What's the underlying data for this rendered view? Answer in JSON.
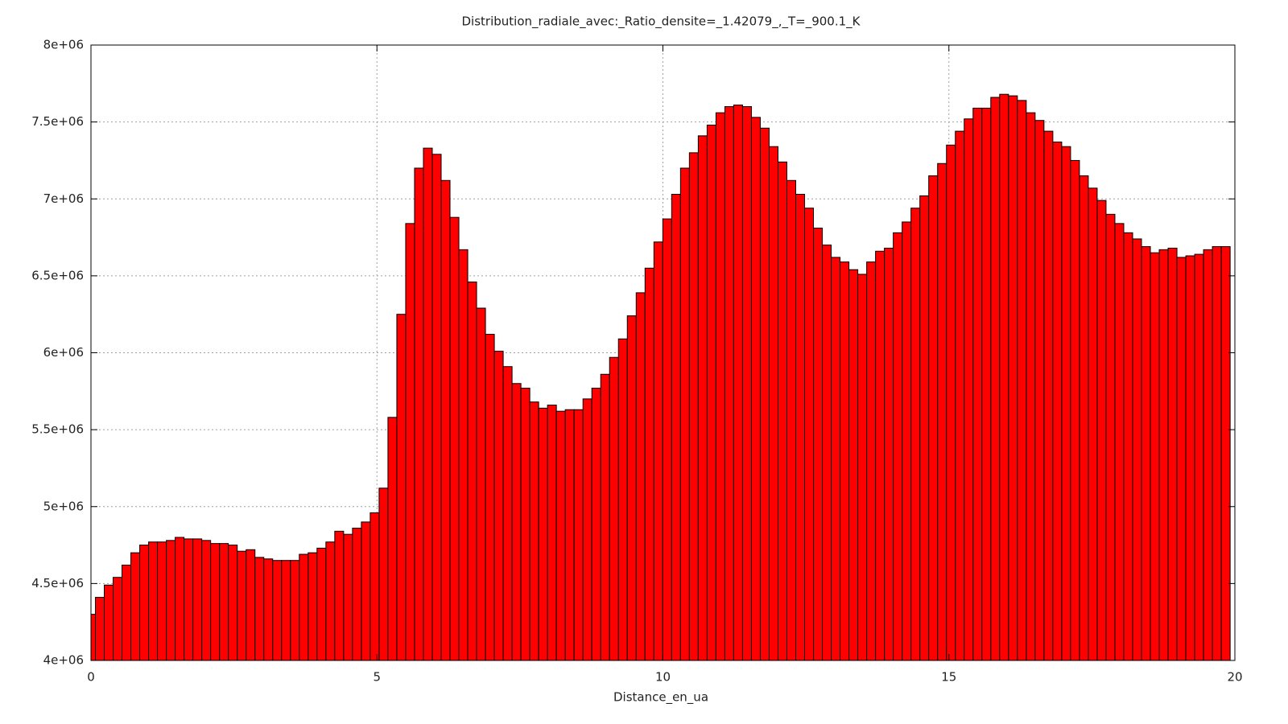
{
  "chart_data": {
    "type": "histogram",
    "title": "Distribution_radiale_avec:_Ratio_densite=_1.42079_,_T=_900.1_K",
    "xlabel": "Distance_en_ua",
    "color": "#ff0000",
    "grid": true,
    "xlim": [
      0,
      20
    ],
    "xticks": [
      0,
      5,
      10,
      15,
      20
    ],
    "ylim": [
      4000000,
      8000000
    ],
    "yticks": [
      {
        "value": 4000000,
        "label": "4e+06"
      },
      {
        "value": 4500000,
        "label": "4.5e+06"
      },
      {
        "value": 5000000,
        "label": "5e+06"
      },
      {
        "value": 5500000,
        "label": "5.5e+06"
      },
      {
        "value": 6000000,
        "label": "6e+06"
      },
      {
        "value": 6500000,
        "label": "6.5e+06"
      },
      {
        "value": 7000000,
        "label": "7e+06"
      },
      {
        "value": 7500000,
        "label": "7.5e+06"
      },
      {
        "value": 8000000,
        "label": "8e+06"
      }
    ],
    "x": [
      0,
      0.155,
      0.31,
      0.465,
      0.62,
      0.775,
      0.93,
      1.085,
      1.24,
      1.395,
      1.55,
      1.705,
      1.86,
      2.015,
      2.17,
      2.325,
      2.48,
      2.635,
      2.79,
      2.945,
      3.1,
      3.255,
      3.41,
      3.565,
      3.72,
      3.875,
      4.03,
      4.185,
      4.34,
      4.495,
      4.65,
      4.805,
      4.96,
      5.115,
      5.27,
      5.425,
      5.58,
      5.735,
      5.89,
      6.045,
      6.2,
      6.355,
      6.51,
      6.665,
      6.82,
      6.975,
      7.13,
      7.285,
      7.44,
      7.595,
      7.75,
      7.905,
      8.06,
      8.215,
      8.37,
      8.525,
      8.68,
      8.835,
      8.99,
      9.145,
      9.3,
      9.455,
      9.61,
      9.765,
      9.92,
      10.075,
      10.23,
      10.385,
      10.54,
      10.695,
      10.85,
      11.005,
      11.16,
      11.315,
      11.47,
      11.625,
      11.78,
      11.935,
      12.09,
      12.245,
      12.4,
      12.555,
      12.71,
      12.865,
      13.02,
      13.175,
      13.33,
      13.485,
      13.64,
      13.795,
      13.95,
      14.105,
      14.26,
      14.415,
      14.57,
      14.725,
      14.88,
      15.035,
      15.19,
      15.345,
      15.5,
      15.655,
      15.81,
      15.965,
      16.12,
      16.275,
      16.43,
      16.585,
      16.74,
      16.895,
      17.05,
      17.205,
      17.36,
      17.515,
      17.67,
      17.825,
      17.98,
      18.135,
      18.29,
      18.445,
      18.6,
      18.755,
      18.91,
      19.065,
      19.22,
      19.375,
      19.53,
      19.685,
      19.84
    ],
    "values": [
      4300000,
      4410000,
      4490000,
      4540000,
      4620000,
      4700000,
      4750000,
      4770000,
      4770000,
      4780000,
      4800000,
      4790000,
      4790000,
      4780000,
      4760000,
      4760000,
      4750000,
      4710000,
      4720000,
      4670000,
      4660000,
      4650000,
      4650000,
      4650000,
      4690000,
      4700000,
      4730000,
      4770000,
      4840000,
      4820000,
      4860000,
      4900000,
      4960000,
      5120000,
      5580000,
      6250000,
      6840000,
      7200000,
      7330000,
      7290000,
      7120000,
      6880000,
      6670000,
      6460000,
      6290000,
      6120000,
      6010000,
      5910000,
      5800000,
      5770000,
      5680000,
      5640000,
      5660000,
      5620000,
      5630000,
      5630000,
      5700000,
      5770000,
      5860000,
      5970000,
      6090000,
      6240000,
      6390000,
      6550000,
      6720000,
      6870000,
      7030000,
      7200000,
      7300000,
      7410000,
      7480000,
      7560000,
      7600000,
      7610000,
      7600000,
      7530000,
      7460000,
      7340000,
      7240000,
      7120000,
      7030000,
      6940000,
      6810000,
      6700000,
      6620000,
      6590000,
      6540000,
      6510000,
      6590000,
      6660000,
      6680000,
      6780000,
      6850000,
      6940000,
      7020000,
      7150000,
      7230000,
      7350000,
      7440000,
      7520000,
      7590000,
      7590000,
      7660000,
      7680000,
      7670000,
      7640000,
      7560000,
      7510000,
      7440000,
      7370000,
      7340000,
      7250000,
      7150000,
      7070000,
      6990000,
      6900000,
      6840000,
      6780000,
      6740000,
      6690000,
      6650000,
      6670000,
      6680000,
      6620000,
      6630000,
      6640000,
      6670000,
      6690000,
      6690000
    ]
  }
}
